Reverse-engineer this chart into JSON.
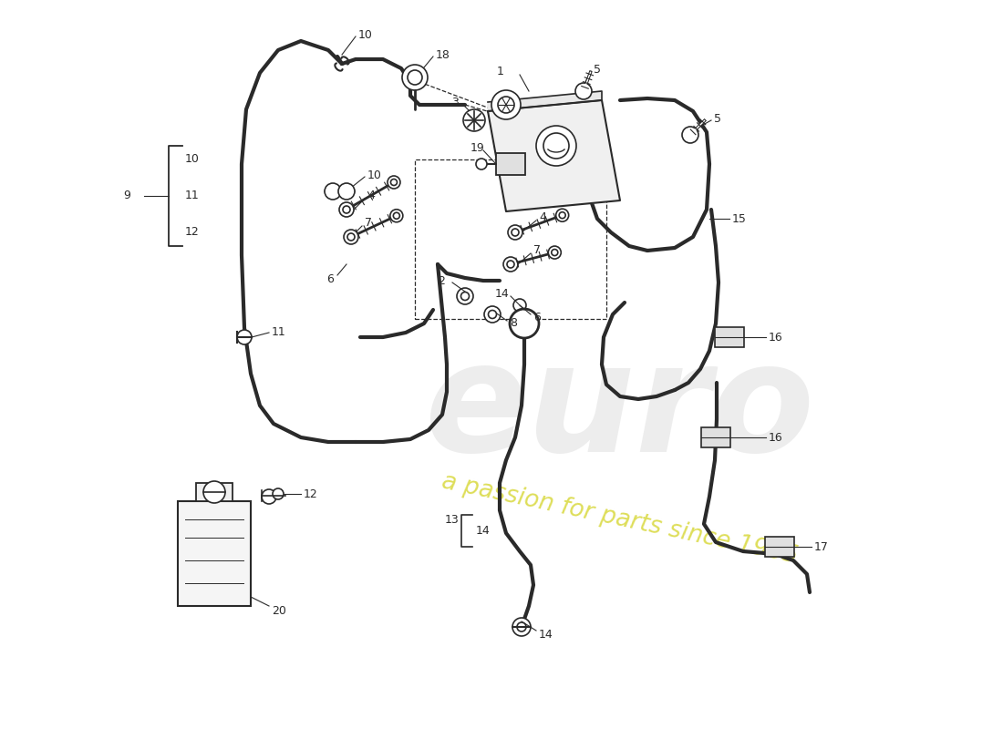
{
  "background_color": "#ffffff",
  "line_color": "#2a2a2a",
  "fig_width": 11.0,
  "fig_height": 8.0,
  "watermark1_color": "#cccccc",
  "watermark2_color": "#d4d400",
  "coords": {
    "xlim": [
      0,
      1100
    ],
    "ylim": [
      0,
      800
    ]
  }
}
